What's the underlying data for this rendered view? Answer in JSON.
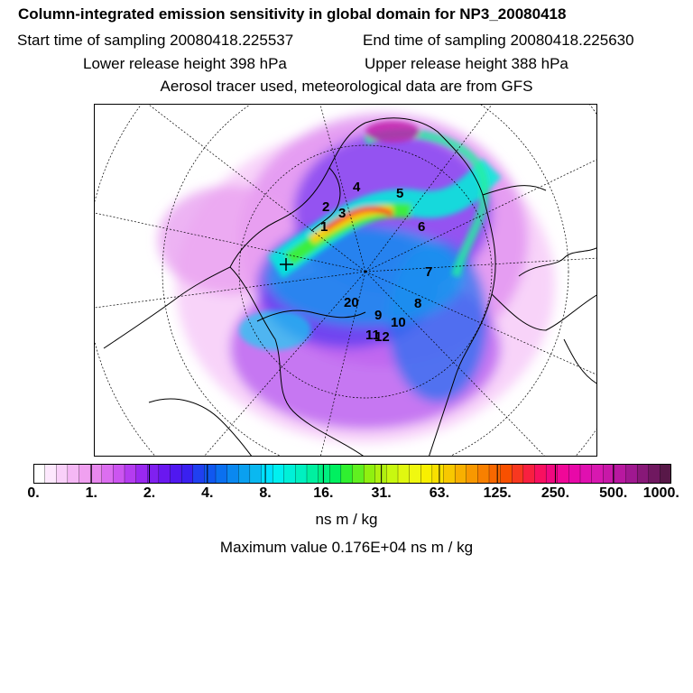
{
  "header": {
    "title": "Column-integrated emission sensitivity in global domain for NP3_20080418",
    "start_time": "Start time of sampling 20080418.225537",
    "end_time": "End time of sampling 20080418.225630",
    "lower_release": "Lower release height  398 hPa",
    "upper_release": "Upper release height  388 hPa",
    "tracer_info": "Aerosol tracer used, meteorological data are from GFS"
  },
  "map": {
    "projection": "polar-stereographic",
    "release_labels": [
      {
        "text": "1"
      },
      {
        "text": "2"
      },
      {
        "text": "3"
      },
      {
        "text": "4"
      },
      {
        "text": "5"
      },
      {
        "text": "6"
      },
      {
        "text": "7"
      },
      {
        "text": "8"
      },
      {
        "text": "9"
      },
      {
        "text": "10"
      },
      {
        "text": "11"
      },
      {
        "text": "12"
      },
      {
        "text": "20"
      }
    ]
  },
  "legend": {
    "colors": [
      "#ffffff",
      "#fde8fd",
      "#f9d0f9",
      "#f5b8f5",
      "#f0a0f0",
      "#e888ee",
      "#dc6ef0",
      "#cc55f0",
      "#b43cf0",
      "#9a28f0",
      "#8020f0",
      "#6a18f0",
      "#5018f0",
      "#3a20f0",
      "#2040f0",
      "#1058f0",
      "#0a70f0",
      "#0a88f0",
      "#0aa0f0",
      "#0ab8f0",
      "#00e0ff",
      "#00f0f0",
      "#00f0d8",
      "#00f0c0",
      "#00f0a0",
      "#00f080",
      "#00f060",
      "#30f030",
      "#60f020",
      "#90f010",
      "#b0f010",
      "#c8f810",
      "#e0f810",
      "#f0f810",
      "#f8f000",
      "#f8e000",
      "#f8c800",
      "#f8b000",
      "#f89800",
      "#f88000",
      "#f86800",
      "#f85000",
      "#f83820",
      "#f82040",
      "#f81060",
      "#f00880",
      "#f00898",
      "#e808a8",
      "#e010b0",
      "#d818b0",
      "#c818a8",
      "#b818a0",
      "#a01890",
      "#881878",
      "#701860",
      "#581848"
    ],
    "ticks": [
      "0.",
      "1.",
      "2.",
      "4.",
      "8.",
      "16.",
      "31.",
      "63.",
      "125.",
      "250.",
      "500.",
      "1000."
    ],
    "units": "ns m / kg",
    "max_value": "Maximum value  0.176E+04 ns m / kg"
  }
}
